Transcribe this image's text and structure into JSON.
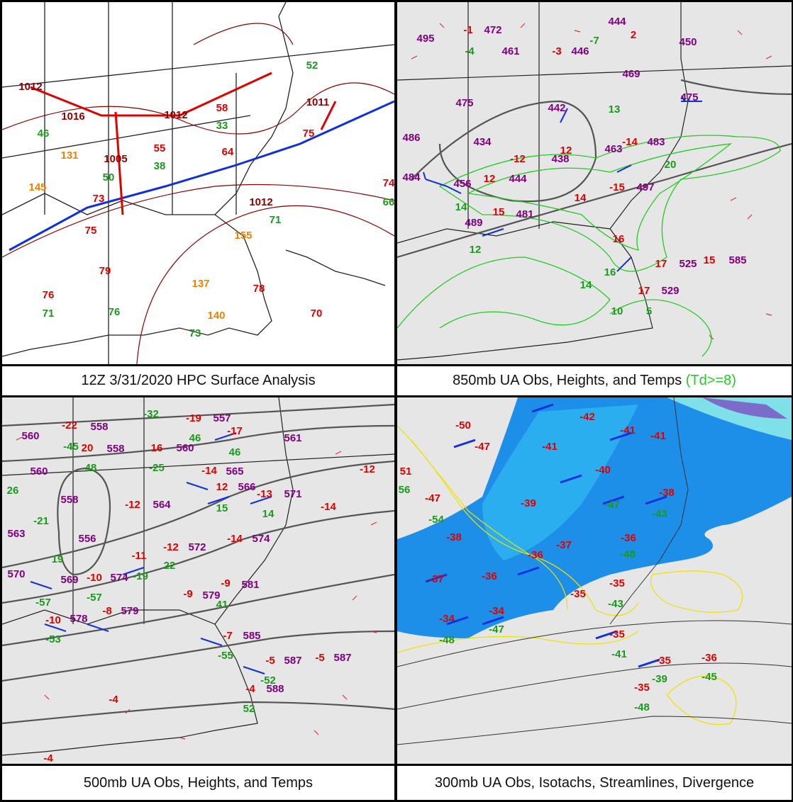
{
  "panels": [
    {
      "caption": "12Z 3/31/2020 HPC Surface Analysis",
      "labels": [
        {
          "text": "1012",
          "color": "#8b0000"
        },
        {
          "text": "1016",
          "color": "#8b0000"
        },
        {
          "text": "1005",
          "color": "#8b0000"
        },
        {
          "text": "1012",
          "color": "#8b0000"
        },
        {
          "text": "1011",
          "color": "#8b0000"
        },
        {
          "text": "1012",
          "color": "#8b0000"
        },
        {
          "text": "58",
          "color": "#e00000"
        },
        {
          "text": "55",
          "color": "#e00000"
        },
        {
          "text": "75",
          "color": "#e00000"
        },
        {
          "text": "64",
          "color": "#e00000"
        },
        {
          "text": "73",
          "color": "#e00000"
        },
        {
          "text": "75",
          "color": "#e00000"
        },
        {
          "text": "79",
          "color": "#e00000"
        },
        {
          "text": "76",
          "color": "#e00000"
        },
        {
          "text": "78",
          "color": "#e00000"
        },
        {
          "text": "70",
          "color": "#e00000"
        },
        {
          "text": "74",
          "color": "#e00000"
        },
        {
          "text": "52",
          "color": "#1a9a1a"
        },
        {
          "text": "66",
          "color": "#1a9a1a"
        },
        {
          "text": "38",
          "color": "#1a9a1a"
        },
        {
          "text": "33",
          "color": "#1a9a1a"
        },
        {
          "text": "71",
          "color": "#1a9a1a"
        },
        {
          "text": "76",
          "color": "#1a9a1a"
        },
        {
          "text": "71",
          "color": "#1a9a1a"
        },
        {
          "text": "73",
          "color": "#1a9a1a"
        },
        {
          "text": "50",
          "color": "#1a9a1a"
        },
        {
          "text": "46",
          "color": "#1a9a1a"
        },
        {
          "text": "137",
          "color": "#f08000"
        },
        {
          "text": "140",
          "color": "#f08000"
        },
        {
          "text": "131",
          "color": "#f08000"
        },
        {
          "text": "145",
          "color": "#f08000"
        },
        {
          "text": "155",
          "color": "#f08000"
        }
      ]
    },
    {
      "caption": "850mb UA Obs, Heights, and Temps",
      "caption_note": "(Td>=8)",
      "labels": [
        {
          "text": "495",
          "color": "#800080"
        },
        {
          "text": "472",
          "color": "#800080"
        },
        {
          "text": "461",
          "color": "#800080"
        },
        {
          "text": "446",
          "color": "#800080"
        },
        {
          "text": "444",
          "color": "#800080"
        },
        {
          "text": "469",
          "color": "#800080"
        },
        {
          "text": "475",
          "color": "#800080"
        },
        {
          "text": "442",
          "color": "#800080"
        },
        {
          "text": "434",
          "color": "#800080"
        },
        {
          "text": "438",
          "color": "#800080"
        },
        {
          "text": "463",
          "color": "#800080"
        },
        {
          "text": "483",
          "color": "#800080"
        },
        {
          "text": "486",
          "color": "#800080"
        },
        {
          "text": "484",
          "color": "#800080"
        },
        {
          "text": "456",
          "color": "#800080"
        },
        {
          "text": "444",
          "color": "#800080"
        },
        {
          "text": "481",
          "color": "#800080"
        },
        {
          "text": "489",
          "color": "#800080"
        },
        {
          "text": "497",
          "color": "#800080"
        },
        {
          "text": "525",
          "color": "#800080"
        },
        {
          "text": "585",
          "color": "#800080"
        },
        {
          "text": "529",
          "color": "#800080"
        },
        {
          "text": "450",
          "color": "#800080"
        },
        {
          "text": "475",
          "color": "#800080"
        },
        {
          "text": "-1",
          "color": "#e00000"
        },
        {
          "text": "-3",
          "color": "#e00000"
        },
        {
          "text": "-12",
          "color": "#e00000"
        },
        {
          "text": "12",
          "color": "#e00000"
        },
        {
          "text": "-14",
          "color": "#e00000"
        },
        {
          "text": "14",
          "color": "#e00000"
        },
        {
          "text": "-15",
          "color": "#e00000"
        },
        {
          "text": "15",
          "color": "#e00000"
        },
        {
          "text": "16",
          "color": "#e00000"
        },
        {
          "text": "17",
          "color": "#e00000"
        },
        {
          "text": "17",
          "color": "#e00000"
        },
        {
          "text": "15",
          "color": "#e00000"
        },
        {
          "text": "12",
          "color": "#e00000"
        },
        {
          "text": "2",
          "color": "#e00000"
        },
        {
          "text": "-4",
          "color": "#1a9a1a"
        },
        {
          "text": "-7",
          "color": "#1a9a1a"
        },
        {
          "text": "13",
          "color": "#1a9a1a"
        },
        {
          "text": "20",
          "color": "#1a9a1a"
        },
        {
          "text": "14",
          "color": "#1a9a1a"
        },
        {
          "text": "12",
          "color": "#1a9a1a"
        },
        {
          "text": "14",
          "color": "#1a9a1a"
        },
        {
          "text": "16",
          "color": "#1a9a1a"
        },
        {
          "text": "5",
          "color": "#1a9a1a"
        },
        {
          "text": "10",
          "color": "#1a9a1a"
        }
      ]
    },
    {
      "caption": "500mb UA Obs, Heights, and Temps",
      "labels": [
        {
          "text": "560",
          "color": "#800080"
        },
        {
          "text": "558",
          "color": "#800080"
        },
        {
          "text": "558",
          "color": "#800080"
        },
        {
          "text": "560",
          "color": "#800080"
        },
        {
          "text": "557",
          "color": "#800080"
        },
        {
          "text": "561",
          "color": "#800080"
        },
        {
          "text": "565",
          "color": "#800080"
        },
        {
          "text": "566",
          "color": "#800080"
        },
        {
          "text": "571",
          "color": "#800080"
        },
        {
          "text": "574",
          "color": "#800080"
        },
        {
          "text": "558",
          "color": "#800080"
        },
        {
          "text": "556",
          "color": "#800080"
        },
        {
          "text": "564",
          "color": "#800080"
        },
        {
          "text": "572",
          "color": "#800080"
        },
        {
          "text": "581",
          "color": "#800080"
        },
        {
          "text": "579",
          "color": "#800080"
        },
        {
          "text": "579",
          "color": "#800080"
        },
        {
          "text": "578",
          "color": "#800080"
        },
        {
          "text": "585",
          "color": "#800080"
        },
        {
          "text": "587",
          "color": "#800080"
        },
        {
          "text": "587",
          "color": "#800080"
        },
        {
          "text": "588",
          "color": "#800080"
        },
        {
          "text": "560",
          "color": "#800080"
        },
        {
          "text": "563",
          "color": "#800080"
        },
        {
          "text": "570",
          "color": "#800080"
        },
        {
          "text": "569",
          "color": "#800080"
        },
        {
          "text": "574",
          "color": "#800080"
        },
        {
          "text": "-22",
          "color": "#e00000"
        },
        {
          "text": "20",
          "color": "#e00000"
        },
        {
          "text": "16",
          "color": "#e00000"
        },
        {
          "text": "-19",
          "color": "#e00000"
        },
        {
          "text": "-17",
          "color": "#e00000"
        },
        {
          "text": "-14",
          "color": "#e00000"
        },
        {
          "text": "12",
          "color": "#e00000"
        },
        {
          "text": "-13",
          "color": "#e00000"
        },
        {
          "text": "-12",
          "color": "#e00000"
        },
        {
          "text": "-12",
          "color": "#e00000"
        },
        {
          "text": "-14",
          "color": "#e00000"
        },
        {
          "text": "-11",
          "color": "#e00000"
        },
        {
          "text": "-10",
          "color": "#e00000"
        },
        {
          "text": "-9",
          "color": "#e00000"
        },
        {
          "text": "-9",
          "color": "#e00000"
        },
        {
          "text": "-8",
          "color": "#e00000"
        },
        {
          "text": "-10",
          "color": "#e00000"
        },
        {
          "text": "-7",
          "color": "#e00000"
        },
        {
          "text": "-5",
          "color": "#e00000"
        },
        {
          "text": "-5",
          "color": "#e00000"
        },
        {
          "text": "-4",
          "color": "#e00000"
        },
        {
          "text": "-4",
          "color": "#e00000"
        },
        {
          "text": "-4",
          "color": "#e00000"
        },
        {
          "text": "-14",
          "color": "#e00000"
        },
        {
          "text": "-12",
          "color": "#e00000"
        },
        {
          "text": "-45",
          "color": "#1a9a1a"
        },
        {
          "text": "48",
          "color": "#1a9a1a"
        },
        {
          "text": "-25",
          "color": "#1a9a1a"
        },
        {
          "text": "-32",
          "color": "#1a9a1a"
        },
        {
          "text": "46",
          "color": "#1a9a1a"
        },
        {
          "text": "46",
          "color": "#1a9a1a"
        },
        {
          "text": "14",
          "color": "#1a9a1a"
        },
        {
          "text": "15",
          "color": "#1a9a1a"
        },
        {
          "text": "-21",
          "color": "#1a9a1a"
        },
        {
          "text": "19",
          "color": "#1a9a1a"
        },
        {
          "text": "22",
          "color": "#1a9a1a"
        },
        {
          "text": "-19",
          "color": "#1a9a1a"
        },
        {
          "text": "-57",
          "color": "#1a9a1a"
        },
        {
          "text": "-53",
          "color": "#1a9a1a"
        },
        {
          "text": "-55",
          "color": "#1a9a1a"
        },
        {
          "text": "-52",
          "color": "#1a9a1a"
        },
        {
          "text": "52",
          "color": "#1a9a1a"
        },
        {
          "text": "41",
          "color": "#1a9a1a"
        },
        {
          "text": "-57",
          "color": "#1a9a1a"
        },
        {
          "text": "26",
          "color": "#1a9a1a"
        }
      ]
    },
    {
      "caption": "300mb UA Obs, Isotachs, Streamlines, Divergence",
      "labels": [
        {
          "text": "-50",
          "color": "#e00000"
        },
        {
          "text": "-47",
          "color": "#e00000"
        },
        {
          "text": "-42",
          "color": "#e00000"
        },
        {
          "text": "-41",
          "color": "#e00000"
        },
        {
          "text": "-41",
          "color": "#e00000"
        },
        {
          "text": "-41",
          "color": "#e00000"
        },
        {
          "text": "-40",
          "color": "#e00000"
        },
        {
          "text": "-38",
          "color": "#e00000"
        },
        {
          "text": "-39",
          "color": "#e00000"
        },
        {
          "text": "-38",
          "color": "#e00000"
        },
        {
          "text": "-36",
          "color": "#e00000"
        },
        {
          "text": "-37",
          "color": "#e00000"
        },
        {
          "text": "-36",
          "color": "#e00000"
        },
        {
          "text": "-37",
          "color": "#e00000"
        },
        {
          "text": "-36",
          "color": "#e00000"
        },
        {
          "text": "-35",
          "color": "#e00000"
        },
        {
          "text": "-35",
          "color": "#e00000"
        },
        {
          "text": "-34",
          "color": "#e00000"
        },
        {
          "text": "-34",
          "color": "#e00000"
        },
        {
          "text": "-35",
          "color": "#e00000"
        },
        {
          "text": "-35",
          "color": "#e00000"
        },
        {
          "text": "-35",
          "color": "#e00000"
        },
        {
          "text": "-36",
          "color": "#e00000"
        },
        {
          "text": "51",
          "color": "#e00000"
        },
        {
          "text": "-47",
          "color": "#e00000"
        },
        {
          "text": "-43",
          "color": "#1a9a1a"
        },
        {
          "text": "-41",
          "color": "#1a9a1a"
        },
        {
          "text": "-39",
          "color": "#1a9a1a"
        },
        {
          "text": "-48",
          "color": "#1a9a1a"
        },
        {
          "text": "-45",
          "color": "#1a9a1a"
        },
        {
          "text": "-47",
          "color": "#1a9a1a"
        },
        {
          "text": "-48",
          "color": "#1a9a1a"
        },
        {
          "text": "-54",
          "color": "#1a9a1a"
        },
        {
          "text": "-47",
          "color": "#1a9a1a"
        },
        {
          "text": "-48",
          "color": "#1a9a1a"
        },
        {
          "text": "56",
          "color": "#1a9a1a"
        },
        {
          "text": "-43",
          "color": "#1a9a1a"
        }
      ]
    }
  ]
}
